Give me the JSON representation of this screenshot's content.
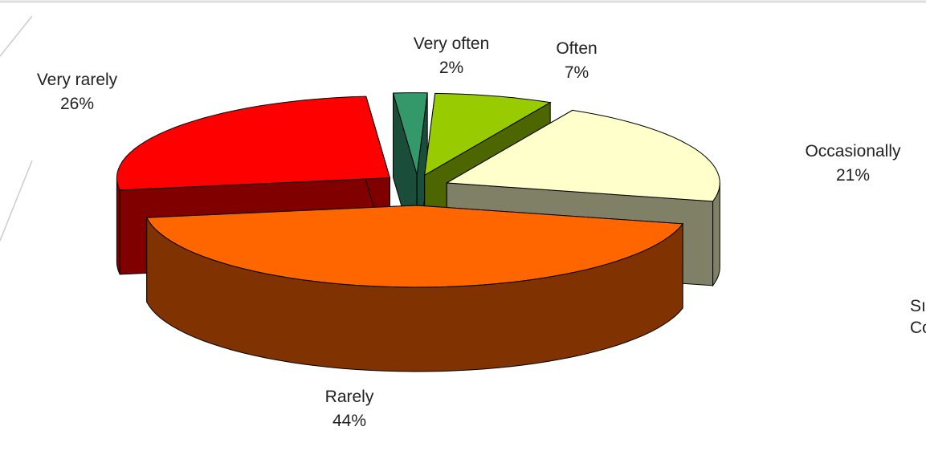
{
  "chart_data": {
    "type": "pie",
    "style": "3d-exploded",
    "slices": [
      {
        "label": "Very often",
        "pct_text": "2%",
        "value": 2,
        "top_color": "#33996b",
        "side_color": "#1a4d3a"
      },
      {
        "label": "Often",
        "pct_text": "7%",
        "value": 7,
        "top_color": "#99cc00",
        "side_color": "#4d6600"
      },
      {
        "label": "Occasionally",
        "pct_text": "21%",
        "value": 21,
        "top_color": "#ffffcc",
        "side_color": "#808066"
      },
      {
        "label": "Rarely",
        "pct_text": "44%",
        "value": 44,
        "top_color": "#ff6600",
        "side_color": "#803300"
      },
      {
        "label": "Very rarely",
        "pct_text": "26%",
        "value": 26,
        "top_color": "#ff0000",
        "side_color": "#800000"
      }
    ]
  },
  "clipped_text": {
    "line1": "Sı",
    "line2": "Co"
  }
}
